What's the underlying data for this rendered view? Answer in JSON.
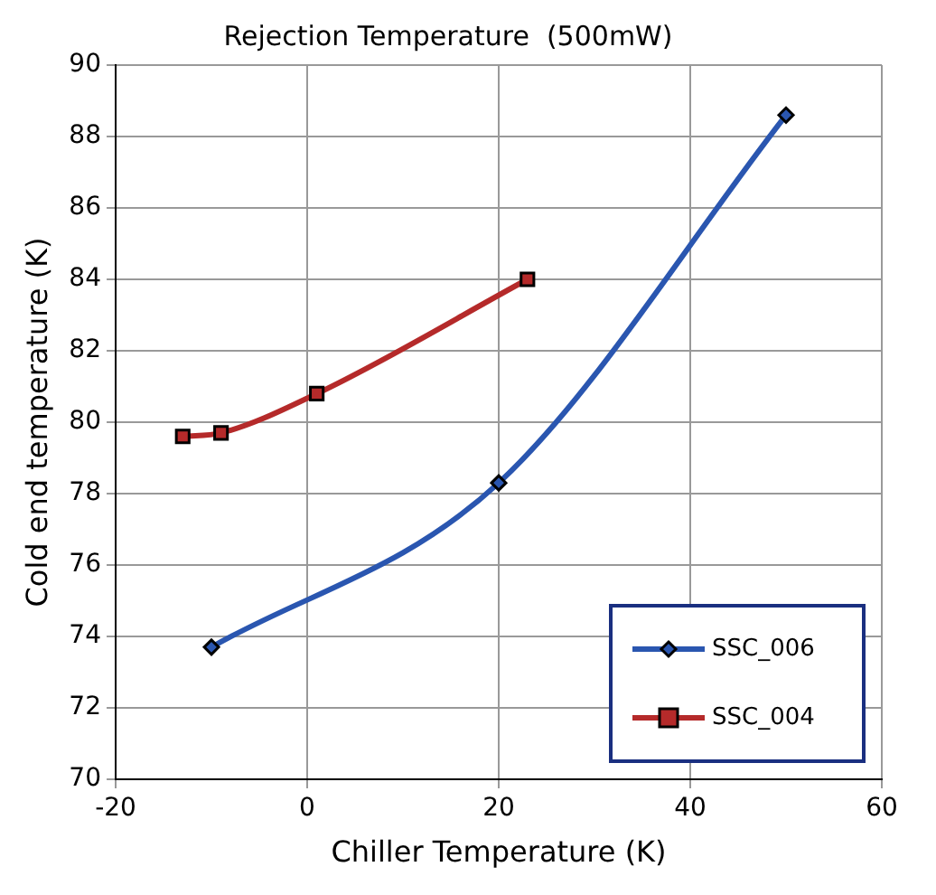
{
  "chart_data": {
    "type": "line",
    "title": "Rejection Temperature  (500mW)",
    "xlabel": "Chiller Temperature (K)",
    "ylabel": "Cold end temperature (K)",
    "series": [
      {
        "name": "SSC_006",
        "color": "#2a56b0",
        "marker": "diamond",
        "x": [
          -10,
          20,
          50
        ],
        "values": [
          73.7,
          78.3,
          88.6
        ]
      },
      {
        "name": "SSC_004",
        "color": "#b52a2a",
        "marker": "square",
        "x": [
          -13,
          -9,
          1,
          23
        ],
        "values": [
          79.6,
          79.7,
          80.8,
          84.0
        ]
      }
    ],
    "xlim": [
      -20,
      60
    ],
    "xticks": [
      -20,
      0,
      20,
      40,
      60
    ],
    "ylim": [
      70,
      90
    ],
    "yticks": [
      70,
      72,
      74,
      76,
      78,
      80,
      82,
      84,
      86,
      88,
      90
    ],
    "grid": true,
    "legend": "bottom right"
  }
}
